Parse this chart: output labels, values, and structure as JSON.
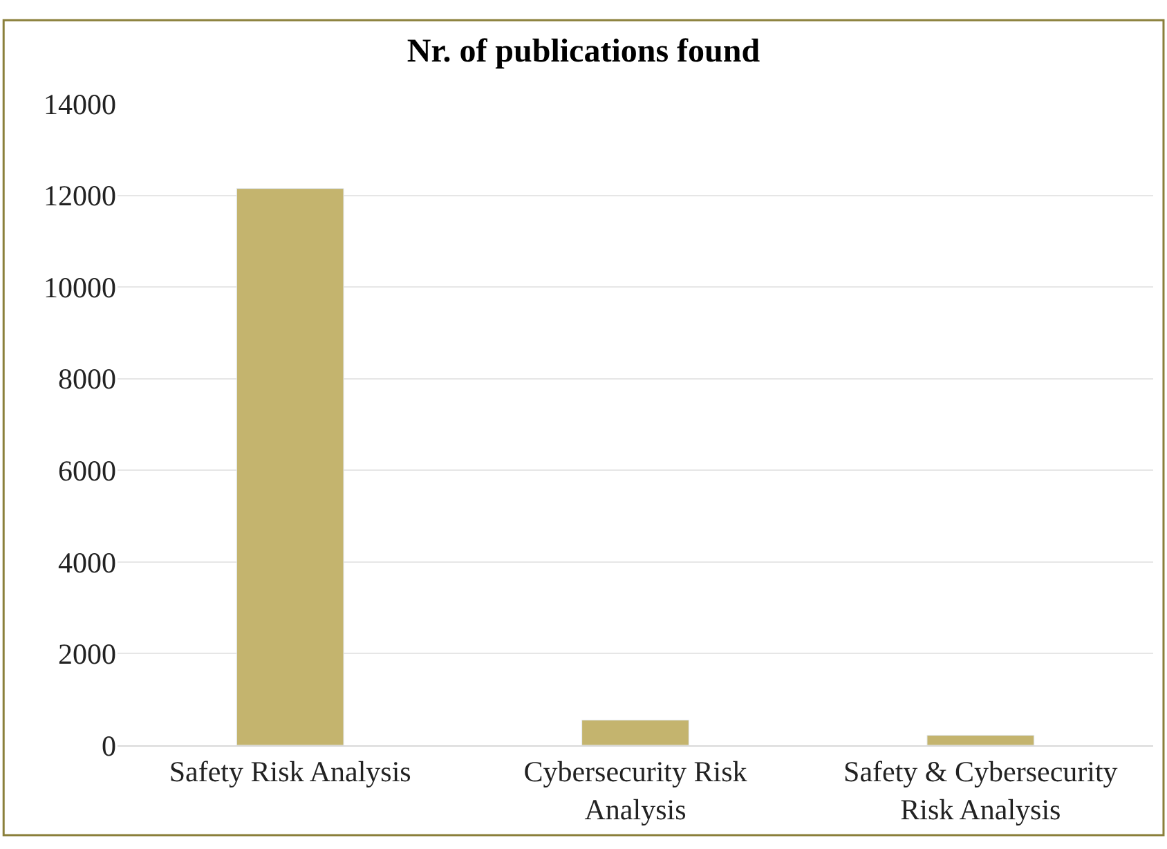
{
  "chart_data": {
    "type": "bar",
    "title": "Nr. of publications found",
    "categories": [
      "Safety Risk Analysis",
      "Cybersecurity Risk Analysis",
      "Safety & Cybersecurity Risk Analysis"
    ],
    "values": [
      12150,
      550,
      220
    ],
    "color": "#c4b46e",
    "ylim": [
      0,
      14000
    ],
    "yticks": [
      0,
      2000,
      4000,
      6000,
      8000,
      10000,
      12000,
      14000
    ],
    "grid": "y",
    "legend": false
  }
}
